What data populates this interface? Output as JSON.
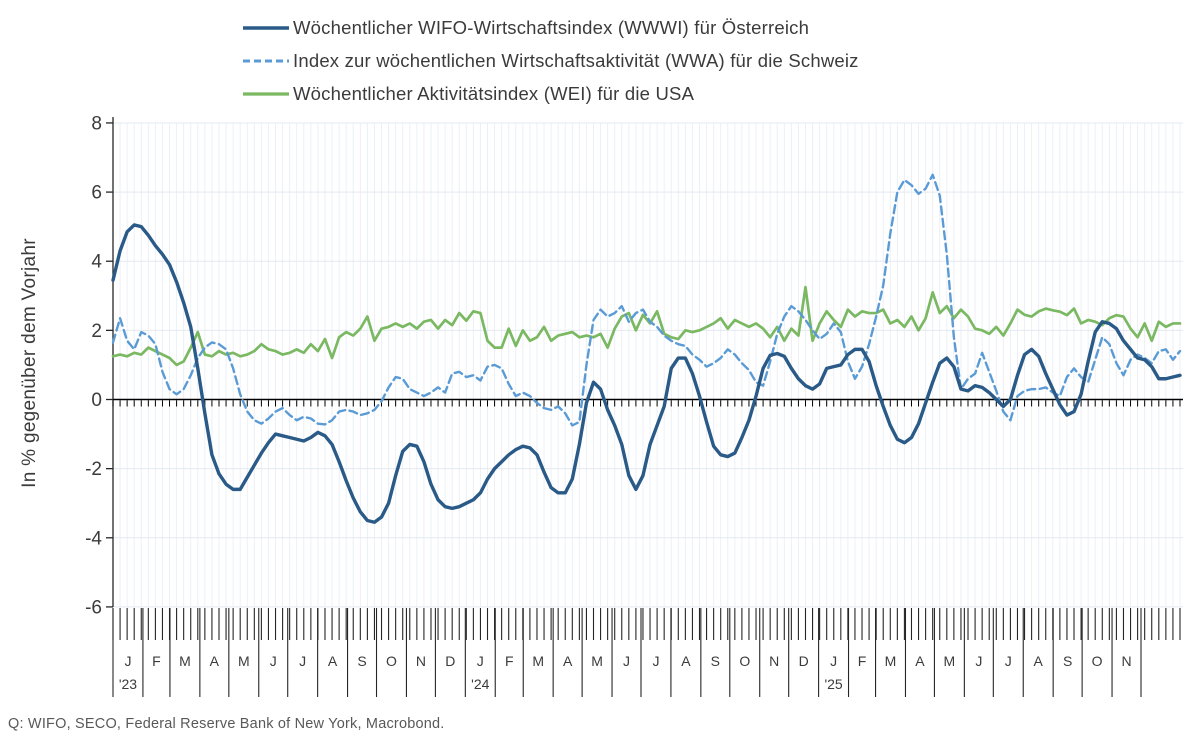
{
  "source_note": "Q: WIFO, SECO, Federal Reserve Bank of New York, Macrobond.",
  "chart_data": {
    "type": "line",
    "title": "",
    "ylabel": "In % gegenüber dem Vorjahr",
    "ylim": [
      -6,
      8
    ],
    "yticks": [
      8,
      6,
      4,
      2,
      0,
      -2,
      -4,
      -6
    ],
    "grid": true,
    "frequency": "weekly",
    "legend_position": "top",
    "x_months": {
      "labels": [
        "J",
        "F",
        "M",
        "A",
        "M",
        "J",
        "J",
        "A",
        "S",
        "O",
        "N",
        "D",
        "J",
        "F",
        "M",
        "A",
        "M",
        "J",
        "J",
        "A",
        "S",
        "O",
        "N",
        "D",
        "J",
        "F",
        "M",
        "A",
        "M",
        "J",
        "J",
        "A",
        "S",
        "O",
        "N"
      ],
      "month_days": [
        31,
        28,
        31,
        30,
        31,
        30,
        31,
        31,
        30,
        31,
        30,
        31,
        31,
        29,
        31,
        30,
        31,
        30,
        31,
        31,
        30,
        31,
        30,
        31,
        31,
        28,
        31,
        30,
        31,
        30,
        31,
        31,
        30,
        31,
        30
      ],
      "year_marks": [
        {
          "month_index": 0,
          "label": "'23"
        },
        {
          "month_index": 12,
          "label": "'24"
        },
        {
          "month_index": 24,
          "label": "'25"
        }
      ]
    },
    "series": [
      {
        "key": "austria-wwwi",
        "label": "Wöchentlicher WIFO-Wirtschaftsindex (WWWI) für Österreich",
        "color": "#2a5a87",
        "style": "solid",
        "dash": "",
        "width": 3.4,
        "values": [
          3.45,
          4.3,
          4.85,
          5.05,
          5.0,
          4.75,
          4.45,
          4.2,
          3.9,
          3.4,
          2.8,
          2.1,
          0.9,
          -0.4,
          -1.6,
          -2.15,
          -2.45,
          -2.6,
          -2.6,
          -2.25,
          -1.9,
          -1.55,
          -1.25,
          -1.0,
          -1.05,
          -1.1,
          -1.15,
          -1.2,
          -1.1,
          -0.95,
          -1.05,
          -1.3,
          -1.8,
          -2.35,
          -2.85,
          -3.25,
          -3.5,
          -3.55,
          -3.4,
          -3.0,
          -2.2,
          -1.5,
          -1.3,
          -1.35,
          -1.8,
          -2.45,
          -2.9,
          -3.1,
          -3.15,
          -3.1,
          -3.0,
          -2.9,
          -2.7,
          -2.3,
          -2.0,
          -1.8,
          -1.6,
          -1.45,
          -1.35,
          -1.4,
          -1.6,
          -2.1,
          -2.55,
          -2.7,
          -2.7,
          -2.3,
          -1.3,
          -0.1,
          0.5,
          0.3,
          -0.3,
          -0.75,
          -1.3,
          -2.2,
          -2.6,
          -2.2,
          -1.3,
          -0.75,
          -0.2,
          0.9,
          1.2,
          1.2,
          0.75,
          0.1,
          -0.65,
          -1.35,
          -1.6,
          -1.65,
          -1.55,
          -1.1,
          -0.6,
          0.1,
          0.9,
          1.28,
          1.33,
          1.25,
          0.9,
          0.6,
          0.4,
          0.3,
          0.45,
          0.9,
          0.95,
          1.0,
          1.3,
          1.45,
          1.45,
          1.1,
          0.4,
          -0.2,
          -0.75,
          -1.15,
          -1.25,
          -1.1,
          -0.7,
          -0.1,
          0.5,
          1.05,
          1.2,
          0.95,
          0.3,
          0.25,
          0.4,
          0.35,
          0.2,
          0.0,
          -0.2,
          0.0,
          0.7,
          1.3,
          1.45,
          1.25,
          0.75,
          0.3,
          -0.15,
          -0.45,
          -0.35,
          0.15,
          1.1,
          1.95,
          2.25,
          2.2,
          2.05,
          1.7,
          1.45,
          1.2,
          1.15,
          0.95,
          0.6,
          0.6,
          0.65,
          0.7
        ]
      },
      {
        "key": "switzerland-wwa",
        "label": "Index zur wöchentlichen Wirtschaftsaktivität (WWA) für die Schweiz",
        "color": "#5b9bd5",
        "style": "dashed",
        "dash": "8 4.5",
        "width": 2.4,
        "values": [
          1.65,
          2.35,
          1.7,
          1.45,
          1.95,
          1.85,
          1.6,
          0.8,
          0.3,
          0.15,
          0.3,
          0.7,
          1.2,
          1.5,
          1.65,
          1.6,
          1.45,
          0.9,
          0.15,
          -0.35,
          -0.6,
          -0.7,
          -0.55,
          -0.35,
          -0.25,
          -0.45,
          -0.6,
          -0.5,
          -0.55,
          -0.7,
          -0.72,
          -0.6,
          -0.35,
          -0.3,
          -0.35,
          -0.45,
          -0.4,
          -0.3,
          -0.05,
          0.35,
          0.65,
          0.6,
          0.3,
          0.2,
          0.1,
          0.2,
          0.35,
          0.2,
          0.75,
          0.8,
          0.65,
          0.7,
          0.55,
          0.95,
          1.0,
          0.9,
          0.45,
          0.1,
          0.2,
          0.1,
          -0.1,
          -0.25,
          -0.3,
          -0.2,
          -0.4,
          -0.75,
          -0.65,
          1.0,
          2.3,
          2.6,
          2.4,
          2.5,
          2.7,
          2.25,
          2.5,
          2.6,
          2.25,
          2.1,
          1.85,
          1.7,
          1.6,
          1.55,
          1.3,
          1.15,
          0.95,
          1.05,
          1.2,
          1.45,
          1.3,
          1.05,
          0.85,
          0.5,
          0.4,
          1.1,
          1.9,
          2.4,
          2.7,
          2.55,
          2.3,
          2.0,
          1.75,
          1.9,
          2.2,
          1.95,
          1.1,
          0.6,
          0.95,
          1.6,
          2.4,
          3.3,
          4.8,
          6.0,
          6.35,
          6.2,
          5.95,
          6.1,
          6.5,
          5.9,
          4.2,
          1.8,
          0.3,
          0.6,
          0.75,
          1.35,
          0.8,
          0.25,
          -0.35,
          -0.6,
          0.1,
          0.25,
          0.3,
          0.3,
          0.35,
          0.2,
          0.1,
          0.65,
          0.9,
          0.65,
          0.5,
          1.15,
          1.8,
          1.6,
          1.05,
          0.7,
          1.15,
          1.3,
          1.2,
          1.05,
          1.4,
          1.45,
          1.15,
          1.4
        ]
      },
      {
        "key": "usa-wei",
        "label": "Wöchentlicher Aktivitätsindex (WEI) für die USA",
        "color": "#7ab862",
        "style": "solid",
        "dash": "",
        "width": 2.7,
        "values": [
          1.25,
          1.3,
          1.25,
          1.35,
          1.3,
          1.5,
          1.4,
          1.3,
          1.2,
          1.0,
          1.1,
          1.5,
          1.95,
          1.3,
          1.25,
          1.4,
          1.3,
          1.35,
          1.25,
          1.3,
          1.4,
          1.6,
          1.45,
          1.4,
          1.3,
          1.35,
          1.45,
          1.35,
          1.6,
          1.4,
          1.75,
          1.2,
          1.8,
          1.95,
          1.85,
          2.05,
          2.4,
          1.7,
          2.05,
          2.1,
          2.2,
          2.1,
          2.2,
          2.05,
          2.25,
          2.3,
          2.05,
          2.3,
          2.15,
          2.5,
          2.28,
          2.55,
          2.5,
          1.7,
          1.5,
          1.5,
          2.05,
          1.55,
          2.0,
          1.7,
          1.8,
          2.1,
          1.7,
          1.85,
          1.9,
          1.95,
          1.8,
          1.85,
          1.8,
          1.9,
          1.5,
          2.05,
          2.4,
          2.5,
          2.0,
          2.45,
          2.2,
          2.55,
          1.9,
          1.8,
          1.75,
          2.0,
          1.95,
          2.0,
          2.1,
          2.2,
          2.35,
          2.05,
          2.3,
          2.2,
          2.1,
          2.2,
          2.05,
          1.8,
          2.1,
          1.7,
          2.05,
          1.85,
          3.25,
          1.7,
          2.2,
          2.55,
          2.3,
          2.1,
          2.6,
          2.4,
          2.55,
          2.5,
          2.5,
          2.6,
          2.2,
          2.3,
          2.1,
          2.4,
          2.0,
          2.35,
          3.1,
          2.5,
          2.7,
          2.35,
          2.6,
          2.4,
          2.05,
          2.0,
          1.9,
          2.1,
          1.85,
          2.2,
          2.6,
          2.45,
          2.4,
          2.55,
          2.63,
          2.58,
          2.54,
          2.44,
          2.63,
          2.2,
          2.3,
          2.25,
          2.15,
          2.35,
          2.44,
          2.4,
          2.05,
          1.8,
          2.2,
          1.7,
          2.25,
          2.1,
          2.2,
          2.2
        ]
      }
    ]
  }
}
